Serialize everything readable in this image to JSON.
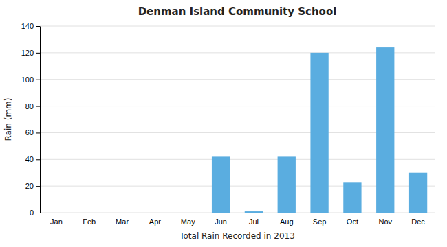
{
  "chart_data": {
    "type": "bar",
    "title": "Denman Island Community School",
    "xlabel": "Total Rain Recorded in 2013",
    "ylabel": "Rain (mm)",
    "categories": [
      "Jan",
      "Feb",
      "Mar",
      "Apr",
      "May",
      "Jun",
      "Jul",
      "Aug",
      "Sep",
      "Oct",
      "Nov",
      "Dec"
    ],
    "values": [
      0,
      0,
      0,
      0,
      0,
      42,
      1,
      42,
      120,
      23,
      124,
      30
    ],
    "color": "#5aade0",
    "ylim": [
      0,
      140
    ],
    "yticks": [
      0,
      20,
      40,
      60,
      80,
      100,
      120,
      140
    ],
    "grid": true
  }
}
